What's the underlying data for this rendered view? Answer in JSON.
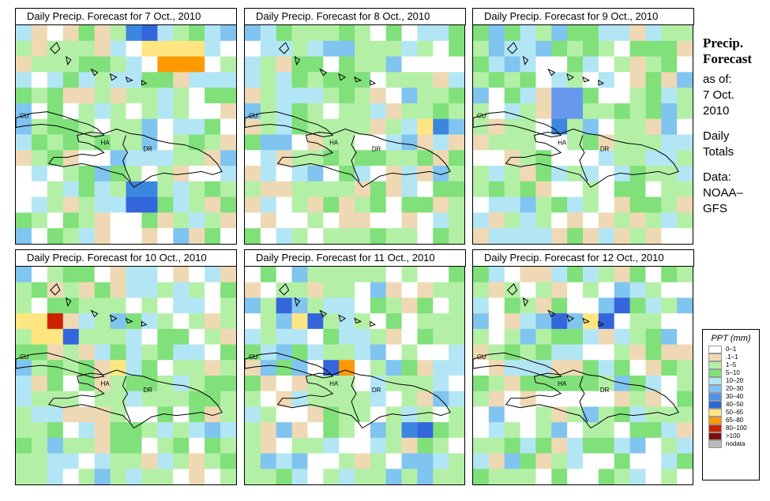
{
  "panels": [
    {
      "title": "Daily Precip. Forecast for  7 Oct., 2010",
      "seed": 11,
      "hot": [
        [
          8,
          1,
          "#ffe680"
        ],
        [
          9,
          2,
          "#ff9900"
        ],
        [
          10,
          2,
          "#ff9900"
        ],
        [
          11,
          2,
          "#ff9900"
        ],
        [
          8,
          0,
          "#3366dd"
        ],
        [
          7,
          0,
          "#3d86e0"
        ],
        [
          9,
          1,
          "#ffe680"
        ],
        [
          10,
          1,
          "#ffe680"
        ],
        [
          11,
          1,
          "#ffe680"
        ],
        [
          7,
          10,
          "#3d86e0"
        ],
        [
          8,
          10,
          "#3d86e0"
        ],
        [
          7,
          11,
          "#3366dd"
        ],
        [
          8,
          11,
          "#3366dd"
        ]
      ]
    },
    {
      "title": "Daily Precip. Forecast for  8 Oct., 2010",
      "seed": 23,
      "hot": [
        [
          11,
          6,
          "#ffe680"
        ],
        [
          12,
          6,
          "#3d86e0"
        ]
      ]
    },
    {
      "title": "Daily Precip. Forecast for  9 Oct., 2010",
      "seed": 37,
      "hot": [
        [
          5,
          4,
          "#6699ee"
        ],
        [
          6,
          4,
          "#6699ee"
        ],
        [
          6,
          5,
          "#6699ee"
        ],
        [
          5,
          5,
          "#6699ee"
        ],
        [
          5,
          6,
          "#3d86e0"
        ]
      ]
    },
    {
      "title": "Daily Precip. Forecast for  10 Oct., 2010",
      "seed": 41,
      "hot": [
        [
          0,
          3,
          "#ffe680"
        ],
        [
          1,
          3,
          "#ffe680"
        ],
        [
          2,
          3,
          "#cc2200"
        ],
        [
          1,
          4,
          "#ffe680"
        ],
        [
          2,
          4,
          "#ffe680"
        ],
        [
          3,
          4,
          "#3366dd"
        ],
        [
          6,
          6,
          "#ffe680"
        ]
      ]
    },
    {
      "title": "Daily Precip. Forecast for  11 Oct., 2010",
      "seed": 53,
      "hot": [
        [
          3,
          3,
          "#ffe680"
        ],
        [
          4,
          3,
          "#3366dd"
        ],
        [
          2,
          2,
          "#3366dd"
        ],
        [
          6,
          6,
          "#ff9900"
        ],
        [
          5,
          6,
          "#3366dd"
        ],
        [
          11,
          10,
          "#3366dd"
        ],
        [
          10,
          10,
          "#3d86e0"
        ]
      ]
    },
    {
      "title": "Daily Precip. Forecast for  12 Oct., 2010",
      "seed": 67,
      "hot": [
        [
          7,
          3,
          "#ffe680"
        ],
        [
          8,
          3,
          "#3366dd"
        ],
        [
          9,
          2,
          "#3366dd"
        ],
        [
          5,
          3,
          "#3366dd"
        ]
      ]
    }
  ],
  "map_labels": {
    "cu": "CU",
    "ha": "HA",
    "dr": "DR"
  },
  "side": {
    "title1": "Precip.",
    "title2": "Forecast",
    "asof": "as of:",
    "date1": "7 Oct.",
    "date2": "2010",
    "daily1": "Daily",
    "daily2": "Totals",
    "data1": "Data:",
    "data2": "NOAA–",
    "data3": "GFS"
  },
  "legend": {
    "title": "PPT (mm)",
    "items": [
      {
        "label": "0–1",
        "color": "#ffffff"
      },
      {
        "label": ".1–1",
        "color": "#efd9b4"
      },
      {
        "label": "1–5",
        "color": "#b3f0a6"
      },
      {
        "label": "5–10",
        "color": "#80e07a"
      },
      {
        "label": "10–20",
        "color": "#b3e6f5"
      },
      {
        "label": "20–30",
        "color": "#80c4f0"
      },
      {
        "label": "30–40",
        "color": "#4d94e6"
      },
      {
        "label": "40–50",
        "color": "#2a66d9"
      },
      {
        "label": "50–65",
        "color": "#ffe680"
      },
      {
        "label": "65–80",
        "color": "#ff9900"
      },
      {
        "label": "80–100",
        "color": "#cc2200"
      },
      {
        "label": ">100",
        "color": "#801010"
      },
      {
        "label": "nodata",
        "color": "#bbbbbb"
      }
    ]
  }
}
